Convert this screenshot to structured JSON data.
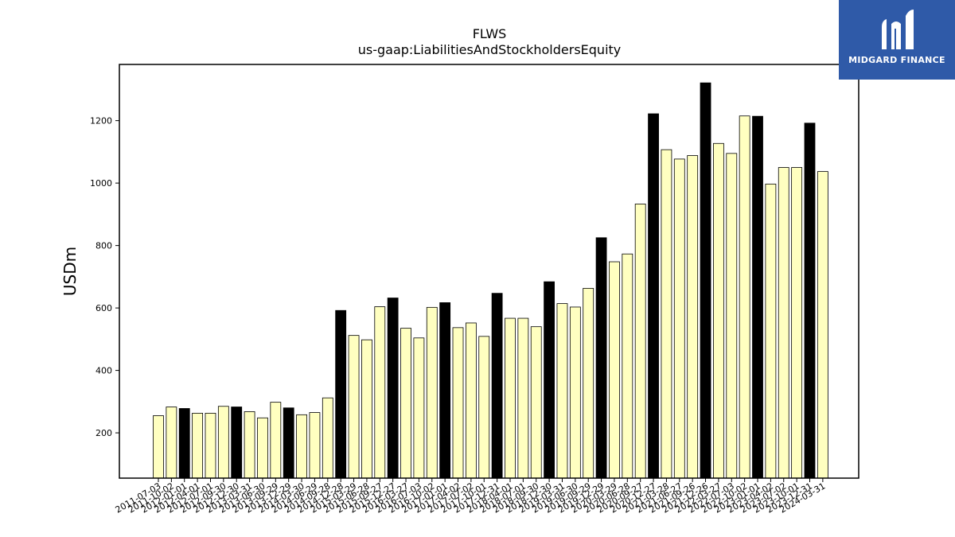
{
  "chart_data": {
    "type": "bar",
    "title": "FLWS",
    "subtitle": "us-gaap:LiabilitiesAndStockholdersEquity",
    "ylabel": "USDm",
    "xlabel": "",
    "ylim": [
      55,
      1380
    ],
    "yticks": [
      200,
      400,
      600,
      800,
      1000,
      1200
    ],
    "grid": false,
    "colors": {
      "annual": "#000000",
      "quarterly": "#ffffc0",
      "edge": "#000000"
    },
    "categories": [
      "2011-07-03",
      "2011-10-02",
      "2012-01-01",
      "2012-04-01",
      "2012-07-01",
      "2012-09-30",
      "2012-12-30",
      "2013-03-31",
      "2013-06-30",
      "2013-09-29",
      "2013-12-29",
      "2014-03-30",
      "2014-06-29",
      "2014-09-28",
      "2014-12-28",
      "2015-03-29",
      "2015-06-28",
      "2015-09-27",
      "2015-12-27",
      "2016-03-27",
      "2016-07-03",
      "2016-10-02",
      "2017-01-01",
      "2017-04-02",
      "2017-07-02",
      "2017-10-01",
      "2017-12-31",
      "2018-04-01",
      "2018-07-01",
      "2018-09-30",
      "2018-12-30",
      "2019-03-31",
      "2019-06-30",
      "2019-09-29",
      "2019-12-29",
      "2020-03-29",
      "2020-06-28",
      "2020-09-27",
      "2020-12-27",
      "2021-03-28",
      "2021-06-27",
      "2021-09-26",
      "2021-12-26",
      "2022-03-27",
      "2022-07-03",
      "2022-10-02",
      "2023-01-01",
      "2023-04-02",
      "2023-07-02",
      "2023-10-01",
      "2023-12-31",
      "2024-03-31"
    ],
    "values": [
      255,
      283,
      278,
      263,
      263,
      285,
      283,
      268,
      248,
      298,
      280,
      258,
      265,
      312,
      592,
      512,
      498,
      604,
      632,
      535,
      504,
      602,
      617,
      537,
      552,
      509,
      647,
      567,
      567,
      540,
      684,
      614,
      603,
      663,
      825,
      748,
      773,
      933,
      1222,
      1107,
      1077,
      1088,
      1321,
      1127,
      1095,
      1215,
      1214,
      997,
      1050,
      1050,
      1192,
      1037
    ],
    "annual": [
      false,
      false,
      true,
      false,
      false,
      false,
      true,
      false,
      false,
      false,
      true,
      false,
      false,
      false,
      true,
      false,
      false,
      false,
      true,
      false,
      false,
      false,
      true,
      false,
      false,
      false,
      true,
      false,
      false,
      false,
      true,
      false,
      false,
      false,
      true,
      false,
      false,
      false,
      true,
      false,
      false,
      false,
      true,
      false,
      false,
      false,
      true,
      false,
      false,
      false,
      true,
      false
    ]
  },
  "logo": {
    "text": "MIDGARD FINANCE",
    "mark": "midgard-logo-mark",
    "color": "#2f5aa8"
  }
}
